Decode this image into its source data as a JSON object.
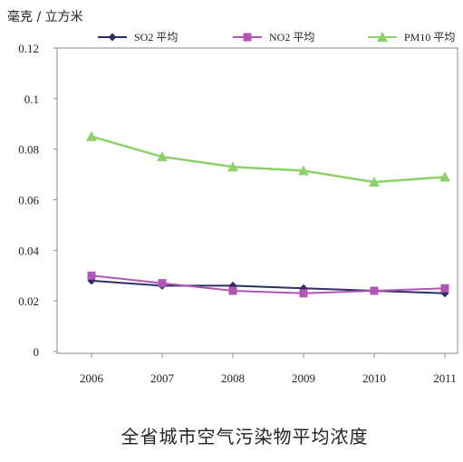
{
  "chart_data": {
    "type": "line",
    "title": "全省城市空气污染物平均浓度",
    "ylabel": "毫克 / 立方米",
    "xlabel": "",
    "categories": [
      "2006",
      "2007",
      "2008",
      "2009",
      "2010",
      "2011"
    ],
    "ylim": [
      0,
      0.12
    ],
    "yticks": [
      "0",
      "0.02",
      "0.04",
      "0.06",
      "0.08",
      "0.1",
      "0.12"
    ],
    "grid": false,
    "legend_position": "top",
    "series": [
      {
        "name": "SO2 平均",
        "color": "#2b2f66",
        "marker": "diamond",
        "values": [
          0.028,
          0.026,
          0.026,
          0.025,
          0.024,
          0.023
        ]
      },
      {
        "name": "NO2 平均",
        "color": "#b255b4",
        "marker": "square",
        "values": [
          0.03,
          0.027,
          0.024,
          0.023,
          0.024,
          0.025
        ]
      },
      {
        "name": "PM10 平均",
        "color": "#8ed06a",
        "marker": "triangle",
        "values": [
          0.085,
          0.077,
          0.073,
          0.0715,
          0.067,
          0.069
        ]
      }
    ]
  }
}
